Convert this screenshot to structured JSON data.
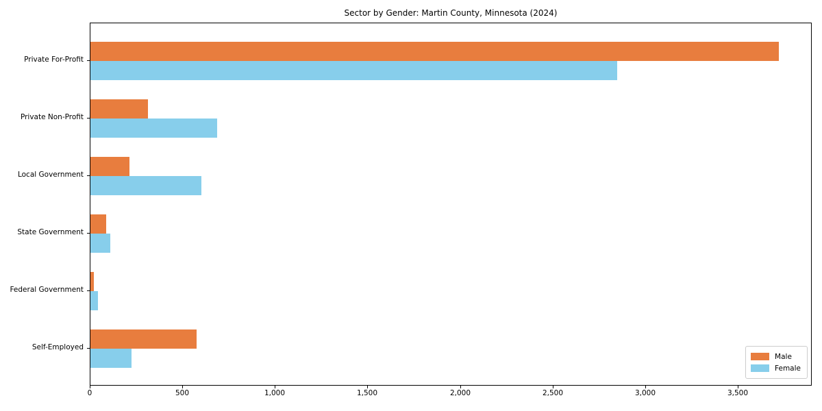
{
  "title": "Sector by Gender: Martin County, Minnesota (2024)",
  "chart_data": {
    "type": "bar",
    "orientation": "horizontal",
    "title": "Sector by Gender: Martin County, Minnesota (2024)",
    "categories": [
      "Private For-Profit",
      "Private Non-Profit",
      "Local Government",
      "State Government",
      "Federal Government",
      "Self-Employed"
    ],
    "series": [
      {
        "name": "Male",
        "color": "#E87D3E",
        "values": [
          3718,
          309,
          212,
          84,
          18,
          574
        ]
      },
      {
        "name": "Female",
        "color": "#87CEEB",
        "values": [
          2846,
          685,
          598,
          107,
          41,
          222
        ]
      }
    ],
    "xlabel": "",
    "ylabel": "",
    "xlim": [
      0,
      3900
    ],
    "x_ticks": [
      0,
      500,
      1000,
      1500,
      2000,
      2500,
      3000,
      3500
    ],
    "x_tick_labels": [
      "0",
      "500",
      "1,000",
      "1,500",
      "2,000",
      "2,500",
      "3,000",
      "3,500"
    ],
    "grid": false,
    "legend_position": "lower right",
    "axis_color": "#000000",
    "background_color": "#ffffff"
  }
}
